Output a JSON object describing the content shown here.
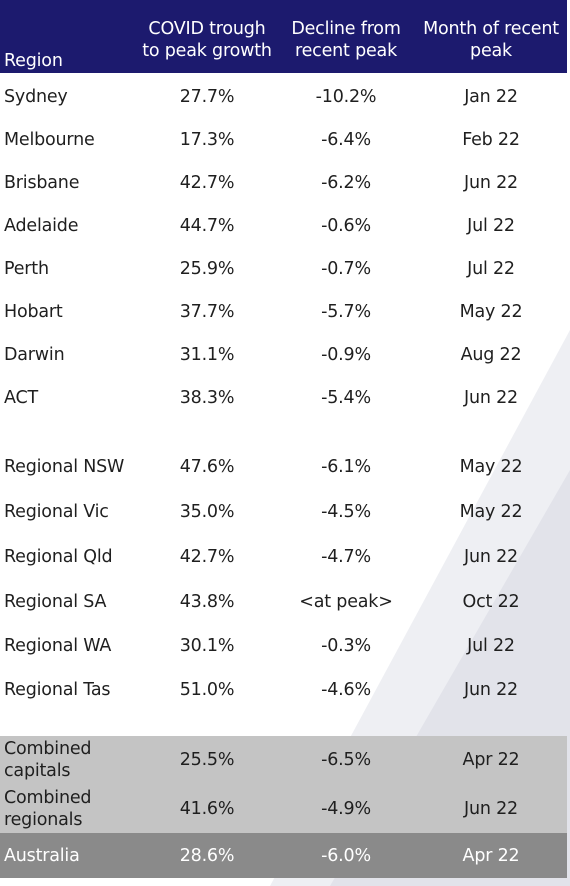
{
  "header": {
    "region": "Region",
    "growth_line1": "COVID trough",
    "growth_line2": "to peak growth",
    "decline_line1": "Decline from",
    "decline_line2": "recent peak",
    "month_line1": "Month of recent",
    "month_line2": "peak"
  },
  "capitals": [
    {
      "region": "Sydney",
      "growth": "27.7%",
      "decline": "-10.2%",
      "month": "Jan 22"
    },
    {
      "region": "Melbourne",
      "growth": "17.3%",
      "decline": "-6.4%",
      "month": "Feb 22"
    },
    {
      "region": "Brisbane",
      "growth": "42.7%",
      "decline": "-6.2%",
      "month": "Jun 22"
    },
    {
      "region": "Adelaide",
      "growth": "44.7%",
      "decline": "-0.6%",
      "month": "Jul 22"
    },
    {
      "region": "Perth",
      "growth": "25.9%",
      "decline": "-0.7%",
      "month": "Jul 22"
    },
    {
      "region": "Hobart",
      "growth": "37.7%",
      "decline": "-5.7%",
      "month": "May 22"
    },
    {
      "region": "Darwin",
      "growth": "31.1%",
      "decline": "-0.9%",
      "month": "Aug 22"
    },
    {
      "region": "ACT",
      "growth": "38.3%",
      "decline": "-5.4%",
      "month": "Jun 22"
    }
  ],
  "regionals": [
    {
      "region": "Regional NSW",
      "growth": "47.6%",
      "decline": "-6.1%",
      "month": "May 22"
    },
    {
      "region": "Regional Vic",
      "growth": "35.0%",
      "decline": "-4.5%",
      "month": "May 22"
    },
    {
      "region": "Regional Qld",
      "growth": "42.7%",
      "decline": "-4.7%",
      "month": "Jun 22"
    },
    {
      "region": "Regional SA",
      "growth": "43.8%",
      "decline": "<at peak>",
      "month": "Oct 22"
    },
    {
      "region": "Regional WA",
      "growth": "30.1%",
      "decline": "-0.3%",
      "month": "Jul 22"
    },
    {
      "region": "Regional Tas",
      "growth": "51.0%",
      "decline": "-4.6%",
      "month": "Jun 22"
    }
  ],
  "combined_capitals": {
    "region_line1": "Combined",
    "region_line2": "capitals",
    "growth": "25.5%",
    "decline": "-6.5%",
    "month": "Apr 22"
  },
  "combined_regionals": {
    "region_line1": "Combined",
    "region_line2": "regionals",
    "growth": "41.6%",
    "decline": "-4.9%",
    "month": "Jun 22"
  },
  "australia": {
    "region": "Australia",
    "growth": "28.6%",
    "decline": "-6.0%",
    "month": "Apr 22"
  },
  "colors": {
    "header_bg": "#1c1a6e",
    "combined_bg": "#c4c4c4",
    "total_bg": "#8a8a8a"
  }
}
